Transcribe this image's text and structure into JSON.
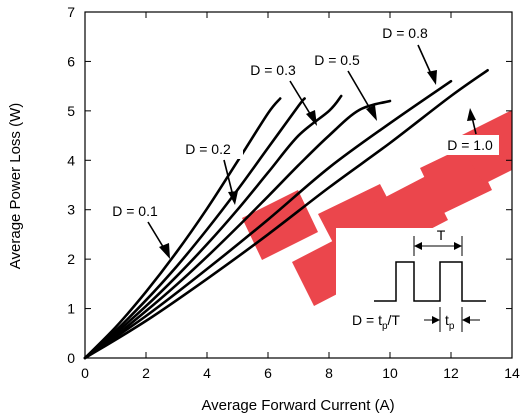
{
  "chart_data": {
    "type": "line",
    "title": "",
    "xlabel": "Average Forward Current (A)",
    "ylabel": "Average Power Loss (W)",
    "xlim": [
      0,
      14
    ],
    "ylim": [
      0,
      7
    ],
    "xticks": [
      0,
      2,
      4,
      6,
      8,
      10,
      12,
      14
    ],
    "yticks": [
      0,
      1,
      2,
      3,
      4,
      5,
      6,
      7
    ],
    "grid": false,
    "series": [
      {
        "name": "D = 0.1",
        "x": [
          0,
          1,
          2,
          3,
          4,
          5,
          6,
          6.4
        ],
        "y": [
          0,
          0.62,
          1.34,
          2.14,
          3.02,
          3.98,
          4.95,
          5.25
        ]
      },
      {
        "name": "D = 0.2",
        "x": [
          0,
          1,
          2,
          3,
          4,
          5,
          6,
          7,
          7.2
        ],
        "y": [
          0,
          0.55,
          1.17,
          1.85,
          2.6,
          3.4,
          4.25,
          5.1,
          5.25
        ]
      },
      {
        "name": "D = 0.3",
        "x": [
          0,
          1,
          2,
          3,
          4,
          5,
          6,
          7,
          8,
          8.4
        ],
        "y": [
          0,
          0.5,
          1.05,
          1.65,
          2.3,
          3.0,
          3.75,
          4.5,
          5.0,
          5.3
        ]
      },
      {
        "name": "D = 0.5",
        "x": [
          0,
          1,
          2,
          3,
          4,
          5,
          6,
          7,
          8,
          9,
          10
        ],
        "y": [
          0,
          0.45,
          0.95,
          1.48,
          2.05,
          2.65,
          3.27,
          3.9,
          4.5,
          5.02,
          5.2
        ]
      },
      {
        "name": "D = 0.8",
        "x": [
          0,
          2,
          4,
          6,
          8,
          10,
          12
        ],
        "y": [
          0,
          0.85,
          1.8,
          2.8,
          3.85,
          4.75,
          5.6
        ]
      },
      {
        "name": "D = 1.0",
        "x": [
          0,
          2,
          4,
          6,
          8,
          10,
          12,
          13.2
        ],
        "y": [
          0,
          0.75,
          1.6,
          2.5,
          3.45,
          4.35,
          5.3,
          5.82
        ]
      }
    ],
    "labels": [
      "D = 0.1",
      "D = 0.2",
      "D = 0.3",
      "D = 0.5",
      "D = 0.8",
      "D = 1.0"
    ],
    "inset": {
      "period_label": "T",
      "pulse_label": "t",
      "pulse_sub": "p",
      "formula_prefix": "D = t",
      "formula_sub": "p",
      "formula_suffix": "/T"
    },
    "watermark_color": "#e8262d"
  }
}
